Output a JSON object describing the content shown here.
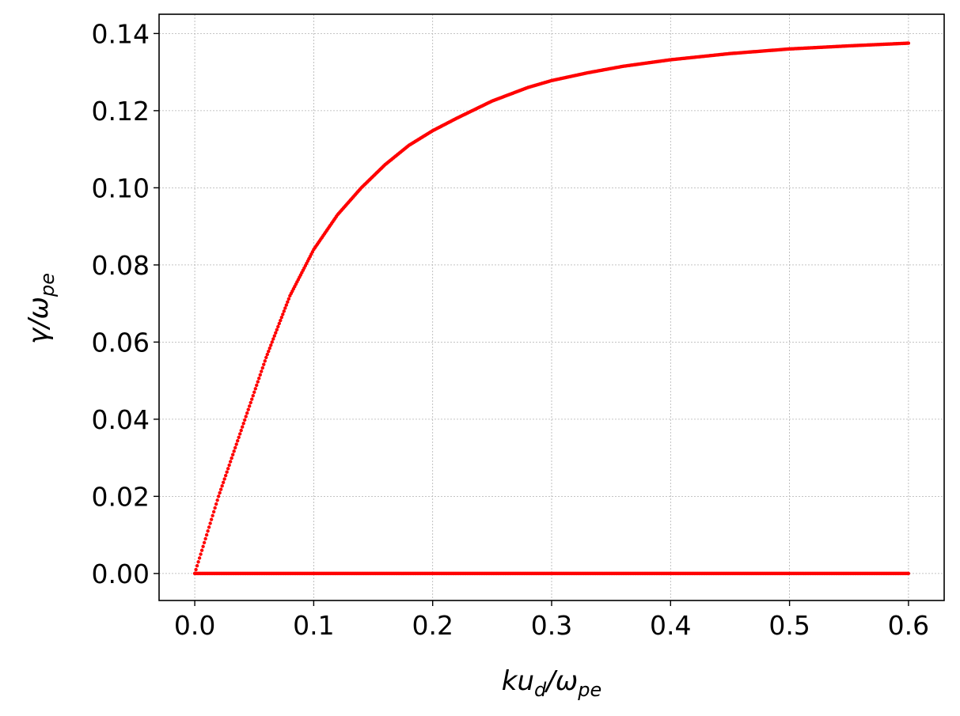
{
  "chart_data": {
    "type": "scatter",
    "title": "",
    "xlabel": "",
    "ylabel": "",
    "xlim": [
      -0.03,
      0.63
    ],
    "ylim": [
      -0.007,
      0.145
    ],
    "x_ticks": [
      0.0,
      0.1,
      0.2,
      0.3,
      0.4,
      0.5,
      0.6
    ],
    "x_tick_labels": [
      "0.0",
      "0.1",
      "0.2",
      "0.3",
      "0.4",
      "0.5",
      "0.6"
    ],
    "y_ticks": [
      0.0,
      0.02,
      0.04,
      0.06,
      0.08,
      0.1,
      0.12,
      0.14
    ],
    "y_tick_labels": [
      "0.00",
      "0.02",
      "0.04",
      "0.06",
      "0.08",
      "0.10",
      "0.12",
      "0.14"
    ],
    "grid": true,
    "legend": "none",
    "marker_color": "#ff0000",
    "series": [
      {
        "x": [
          0.0,
          0.01,
          0.02,
          0.03,
          0.04,
          0.05,
          0.06,
          0.07,
          0.08,
          0.09,
          0.1,
          0.12,
          0.14,
          0.16,
          0.18,
          0.2,
          0.22,
          0.25,
          0.28,
          0.3,
          0.33,
          0.36,
          0.4,
          0.45,
          0.5,
          0.55,
          0.6
        ],
        "y": [
          0.0,
          0.01,
          0.02,
          0.029,
          0.038,
          0.047,
          0.056,
          0.064,
          0.072,
          0.078,
          0.084,
          0.093,
          0.1,
          0.106,
          0.111,
          0.1148,
          0.118,
          0.1225,
          0.126,
          0.1278,
          0.1298,
          0.1315,
          0.1332,
          0.1348,
          0.136,
          0.1368,
          0.1375
        ]
      },
      {
        "x": [
          0.0,
          0.6
        ],
        "y": [
          0.0,
          0.0
        ]
      }
    ]
  },
  "axes": {
    "xlabel_parts": {
      "main": "ku",
      "sub1": "d",
      "mid": "/ω",
      "sub2": "pe"
    },
    "ylabel_parts": {
      "main": "γ/ω",
      "sub": "pe"
    }
  }
}
